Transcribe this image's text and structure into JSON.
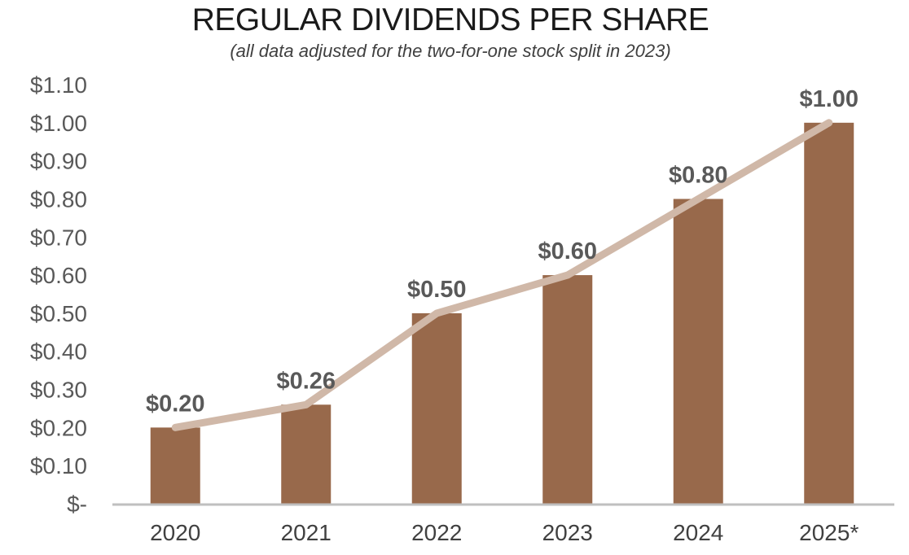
{
  "chart_data": {
    "type": "bar",
    "title": "REGULAR DIVIDENDS PER SHARE",
    "subtitle": "(all data adjusted for the two-for-one stock split in 2023)",
    "categories": [
      "2020",
      "2021",
      "2022",
      "2023",
      "2024",
      "2025*"
    ],
    "values": [
      0.2,
      0.26,
      0.5,
      0.6,
      0.8,
      1.0
    ],
    "data_labels": [
      "$0.20",
      "$0.26",
      "$0.50",
      "$0.60",
      "$0.80",
      "$1.00"
    ],
    "overlay_line": {
      "type": "line",
      "values": [
        0.2,
        0.26,
        0.5,
        0.6,
        0.8,
        1.0
      ]
    },
    "ylim": [
      0,
      1.1
    ],
    "y_ticks": [
      0,
      0.1,
      0.2,
      0.3,
      0.4,
      0.5,
      0.6,
      0.7,
      0.8,
      0.9,
      1.0,
      1.1
    ],
    "y_tick_labels": [
      "$-",
      "$0.10",
      "$0.20",
      "$0.30",
      "$0.40",
      "$0.50",
      "$0.60",
      "$0.70",
      "$0.80",
      "$0.90",
      "$1.00",
      "$1.10"
    ],
    "xlabel": "",
    "ylabel": "",
    "grid": false,
    "legend": "none",
    "colors": {
      "bar": "#98694b",
      "line": "#d0b8a8",
      "axis": "#bfbfbf"
    }
  }
}
